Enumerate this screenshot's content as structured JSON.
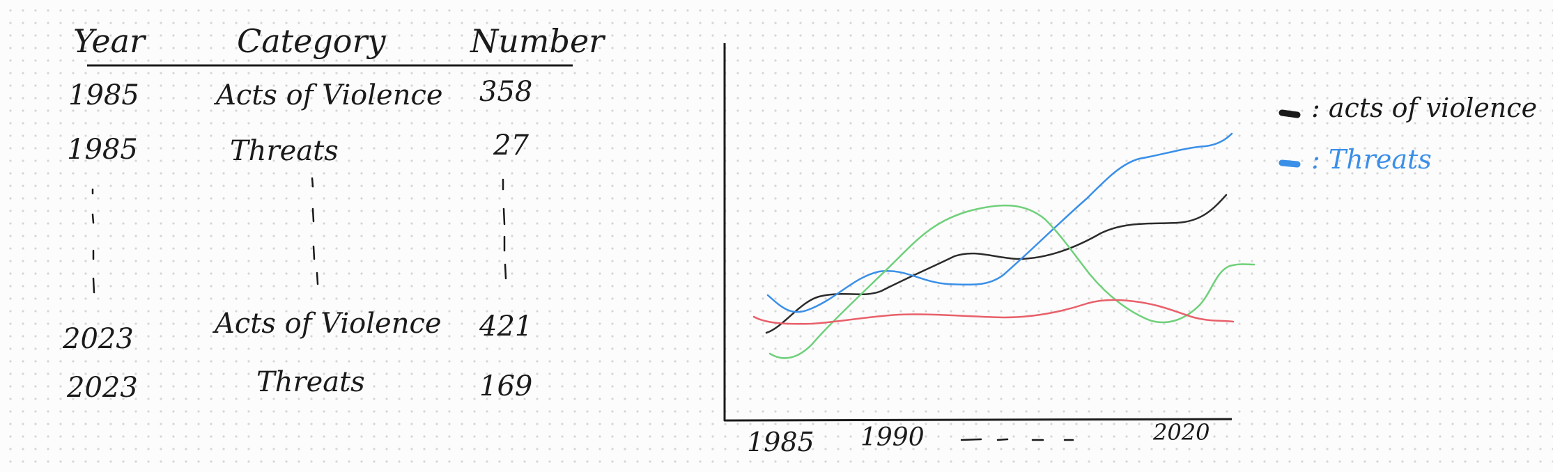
{
  "table": {
    "headers": [
      "Year",
      "Category",
      "Number"
    ],
    "rows": [
      {
        "year": "1985",
        "category": "Acts of Violence",
        "number": "358"
      },
      {
        "year": "1985",
        "category": "Threats",
        "number": "27"
      },
      {
        "year": "2023",
        "category": "Acts of Violence",
        "number": "421"
      },
      {
        "year": "2023",
        "category": "Threats",
        "number": "169"
      }
    ]
  },
  "sketch_chart": {
    "x_tick_labels": [
      "1985",
      "1990",
      "2020"
    ],
    "legend": [
      {
        "label": ": acts of violence",
        "color": "#1a1a1a"
      },
      {
        "label": ": Threats",
        "color": "#3a8fe8"
      }
    ],
    "line_colors": {
      "black": "#2b2b2b",
      "blue": "#3a8fe8",
      "green": "#6fd07a",
      "red": "#e8606a"
    }
  }
}
